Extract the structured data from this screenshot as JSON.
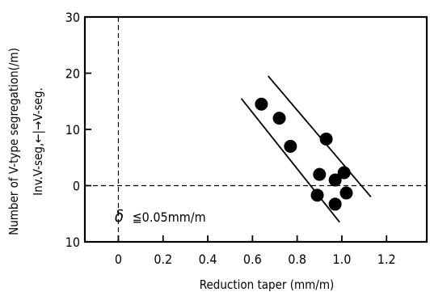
{
  "chart_data": {
    "type": "scatter",
    "xlabel": "Reduction taper (mm/m)",
    "ylabel": "Number of V-type segregation(/m)",
    "ylabel_sub": "Inv.V-seg,←|→V-seg.",
    "annotation_symbol": "δ",
    "annotation_rest": "≦0.05mm/m",
    "xlim": [
      -0.15,
      1.38
    ],
    "ylim": [
      -10,
      30
    ],
    "xticks": [
      0,
      0.2,
      0.4,
      0.6,
      0.8,
      1.0,
      1.2
    ],
    "xtick_labels": [
      "0",
      "0.2",
      "0.4",
      "0.6",
      "0.8",
      "1.0",
      "1.2"
    ],
    "yticks": [
      30,
      20,
      10,
      0,
      -10
    ],
    "ytick_labels": [
      "30",
      "20",
      "10",
      "0",
      "10"
    ],
    "grid": false,
    "reference_lines": [
      {
        "orientation": "horizontal",
        "value": 0,
        "style": "dashed"
      },
      {
        "orientation": "vertical",
        "value": 0,
        "style": "dashed"
      }
    ],
    "band_lines": [
      {
        "x1": 0.55,
        "y1": 15.5,
        "x2": 0.99,
        "y2": -6.5
      },
      {
        "x1": 0.67,
        "y1": 19.5,
        "x2": 1.13,
        "y2": -2.0
      }
    ],
    "points": [
      {
        "x": 0.64,
        "y": 14.5
      },
      {
        "x": 0.72,
        "y": 12.0
      },
      {
        "x": 0.77,
        "y": 7.0
      },
      {
        "x": 0.93,
        "y": 8.3
      },
      {
        "x": 0.9,
        "y": 2.0
      },
      {
        "x": 0.97,
        "y": 1.0
      },
      {
        "x": 1.01,
        "y": 2.3
      },
      {
        "x": 0.89,
        "y": -1.7
      },
      {
        "x": 1.02,
        "y": -1.3
      },
      {
        "x": 0.97,
        "y": -3.3
      }
    ],
    "colors": {
      "points": "#000000",
      "lines": "#000000"
    }
  }
}
